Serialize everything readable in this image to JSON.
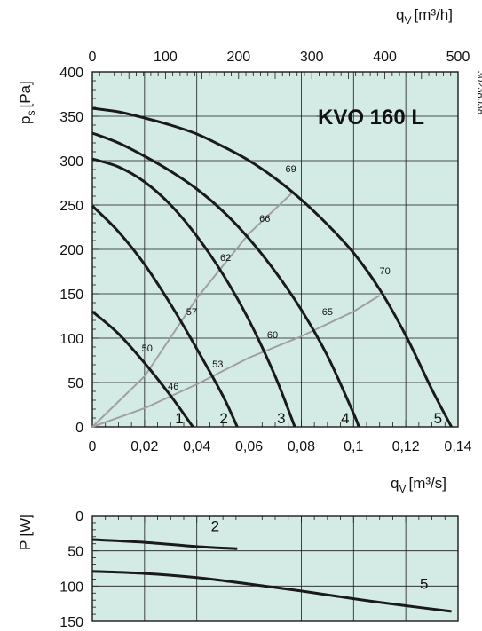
{
  "colors": {
    "plot_bg": "#d4eae5",
    "grid": "#1a1a1a",
    "fan_curve": "#1a1a1a",
    "sound_line": "#a0a0a0",
    "frame": "#1a1a1a"
  },
  "chart_data": [
    {
      "type": "line",
      "title": "KVO 160 L",
      "code": "30238038",
      "xlabel": "q",
      "xlabel_sub": "V",
      "xlabel_unit": "[m³/s]",
      "ylabel": "p",
      "ylabel_sub": "s",
      "ylabel_unit": "[Pa]",
      "x2label": "q",
      "x2label_sub": "V",
      "x2label_unit": "[m³/h]",
      "xlim": [
        0,
        0.14
      ],
      "ylim": [
        0,
        400
      ],
      "x2lim": [
        0,
        500
      ],
      "x_ticks": [
        "0",
        "0,02",
        "0,04",
        "0,06",
        "0,08",
        "0,1",
        "0,12",
        "0,14"
      ],
      "x_tick_values": [
        0,
        0.02,
        0.04,
        0.06,
        0.08,
        0.1,
        0.12,
        0.14
      ],
      "y_ticks": [
        "0",
        "50",
        "100",
        "150",
        "200",
        "250",
        "300",
        "350",
        "400"
      ],
      "y_tick_values": [
        0,
        50,
        100,
        150,
        200,
        250,
        300,
        350,
        400
      ],
      "x2_ticks": [
        "0",
        "100",
        "200",
        "300",
        "400",
        "500"
      ],
      "x2_tick_values": [
        0,
        100,
        200,
        300,
        400,
        500
      ],
      "grid": true,
      "series": [
        {
          "name": "1",
          "x": [
            0,
            0.01,
            0.02,
            0.03,
            0.0385
          ],
          "y": [
            130,
            105,
            72,
            35,
            0
          ]
        },
        {
          "name": "2",
          "x": [
            0,
            0.01,
            0.02,
            0.03,
            0.04,
            0.05,
            0.0555
          ],
          "y": [
            249,
            220,
            183,
            138,
            88,
            35,
            0
          ]
        },
        {
          "name": "3",
          "x": [
            0,
            0.01,
            0.02,
            0.03,
            0.04,
            0.05,
            0.06,
            0.07,
            0.0775
          ],
          "y": [
            302,
            293,
            276,
            250,
            215,
            172,
            120,
            57,
            0
          ]
        },
        {
          "name": "4",
          "x": [
            0,
            0.01,
            0.02,
            0.03,
            0.04,
            0.05,
            0.06,
            0.07,
            0.08,
            0.09,
            0.1,
            0.102
          ],
          "y": [
            331,
            320,
            305,
            288,
            268,
            243,
            212,
            175,
            132,
            80,
            15,
            0
          ]
        },
        {
          "name": "5",
          "x": [
            0,
            0.01,
            0.02,
            0.03,
            0.04,
            0.05,
            0.06,
            0.07,
            0.08,
            0.09,
            0.1,
            0.11,
            0.12,
            0.13,
            0.1375
          ],
          "y": [
            359,
            355,
            348,
            340,
            330,
            316,
            300,
            280,
            256,
            228,
            196,
            155,
            103,
            42,
            0
          ]
        }
      ],
      "system_lines": [
        {
          "x": [
            0,
            0.02,
            0.04,
            0.06,
            0.077
          ],
          "y": [
            0,
            57,
            145,
            218,
            265
          ]
        },
        {
          "x": [
            0,
            0.02,
            0.04,
            0.06,
            0.08,
            0.1,
            0.11
          ],
          "y": [
            0,
            21,
            48,
            78,
            102,
            130,
            148
          ]
        }
      ],
      "sound_labels": [
        {
          "text": "50",
          "x": 0.021,
          "y": 85
        },
        {
          "text": "46",
          "x": 0.031,
          "y": 42
        },
        {
          "text": "57",
          "x": 0.038,
          "y": 126
        },
        {
          "text": "53",
          "x": 0.048,
          "y": 67
        },
        {
          "text": "62",
          "x": 0.051,
          "y": 187
        },
        {
          "text": "60",
          "x": 0.069,
          "y": 100
        },
        {
          "text": "66",
          "x": 0.066,
          "y": 231
        },
        {
          "text": "65",
          "x": 0.09,
          "y": 126
        },
        {
          "text": "69",
          "x": 0.076,
          "y": 287
        },
        {
          "text": "70",
          "x": 0.112,
          "y": 172
        }
      ]
    },
    {
      "type": "line",
      "ylabel": "P",
      "ylabel_unit": "[W]",
      "xlim": [
        0,
        0.14
      ],
      "ylim": [
        0,
        150
      ],
      "y_inverted": true,
      "y_ticks": [
        "0",
        "50",
        "100",
        "150"
      ],
      "y_tick_values": [
        0,
        50,
        100,
        150
      ],
      "grid": true,
      "series": [
        {
          "name": "2",
          "x": [
            0,
            0.02,
            0.04,
            0.0555
          ],
          "y": [
            34,
            38,
            44,
            47
          ]
        },
        {
          "name": "5",
          "x": [
            0,
            0.02,
            0.04,
            0.06,
            0.08,
            0.1,
            0.12,
            0.1375
          ],
          "y": [
            79,
            82,
            88,
            97,
            107,
            118,
            128,
            136
          ]
        }
      ],
      "curve_labels": [
        {
          "text": "2",
          "x": 0.047,
          "y": 22
        },
        {
          "text": "5",
          "x": 0.127,
          "y": 104
        }
      ]
    }
  ]
}
